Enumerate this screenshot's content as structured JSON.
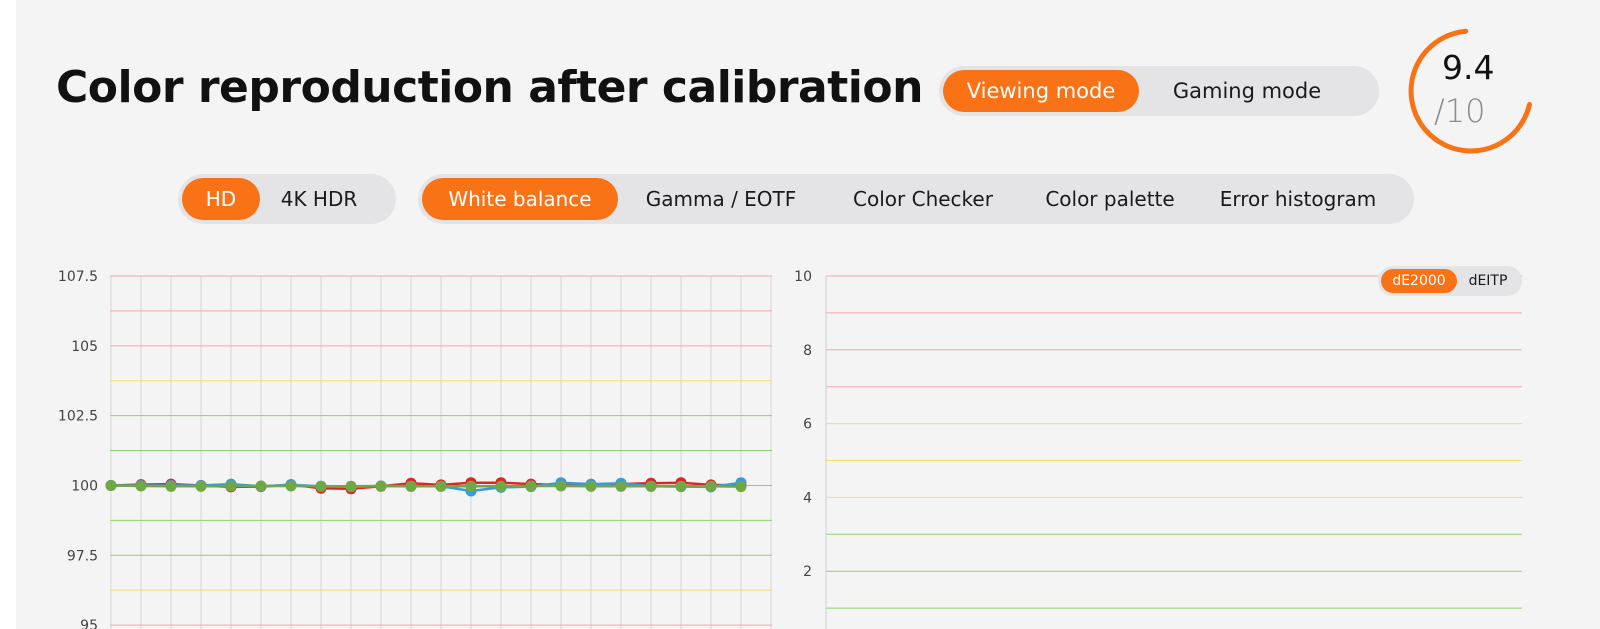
{
  "title": "Color reproduction after calibration",
  "mode_tabs": [
    {
      "label": "Viewing mode",
      "active": true
    },
    {
      "label": "Gaming mode",
      "active": false
    }
  ],
  "score": {
    "value": "9.4",
    "max": "/10",
    "fraction": 0.94,
    "accent": "#f97316"
  },
  "resolution_tabs": [
    {
      "label": "HD",
      "active": true
    },
    {
      "label": "4K HDR",
      "active": false
    }
  ],
  "view_tabs": [
    {
      "label": "White balance",
      "active": true
    },
    {
      "label": "Gamma / EOTF",
      "active": false
    },
    {
      "label": "Color Checker",
      "active": false
    },
    {
      "label": "Color palette",
      "active": false
    },
    {
      "label": "Error histogram",
      "active": false
    }
  ],
  "metric_tabs": [
    {
      "label": "dE2000",
      "active": true
    },
    {
      "label": "dEITP",
      "active": false
    }
  ],
  "colors": {
    "accent": "#f97316",
    "panel_bg": "#f4f4f4",
    "tab_bg": "#e4e4e6"
  },
  "chart_data": [
    {
      "type": "line",
      "title": "",
      "xlabel": "",
      "ylabel": "",
      "ylim": [
        93.75,
        107.5
      ],
      "yticks": [
        95,
        97.5,
        100,
        102.5,
        105,
        107.5
      ],
      "ytick_labels": [
        "95",
        "97.5",
        "100",
        "102.5",
        "105",
        "107.5"
      ],
      "grid": true,
      "x": [
        1,
        2,
        3,
        4,
        5,
        6,
        7,
        8,
        9,
        10,
        11,
        12,
        13,
        14,
        15,
        16,
        17,
        18,
        19,
        20,
        21,
        22
      ],
      "series": [
        {
          "color": "#dc2626",
          "values": [
            100.0,
            100.03,
            100.05,
            100.0,
            99.95,
            99.96,
            100.03,
            99.9,
            99.88,
            99.97,
            100.08,
            100.02,
            100.1,
            100.1,
            100.05,
            100.02,
            100.02,
            100.05,
            100.08,
            100.1,
            100.02,
            100.0
          ]
        },
        {
          "color": "#3b9bd9",
          "values": [
            100.0,
            100.0,
            100.0,
            100.0,
            100.05,
            99.97,
            100.02,
            99.97,
            99.95,
            99.98,
            99.97,
            99.97,
            99.8,
            99.93,
            99.96,
            100.1,
            100.05,
            100.08,
            99.97,
            99.96,
            99.95,
            100.1
          ]
        },
        {
          "color": "#70a844",
          "values": [
            100.0,
            99.98,
            99.97,
            99.97,
            99.98,
            99.98,
            99.98,
            99.97,
            99.97,
            99.98,
            99.97,
            99.97,
            99.97,
            99.97,
            99.98,
            99.98,
            99.97,
            99.97,
            99.97,
            99.97,
            99.97,
            99.96
          ]
        }
      ]
    },
    {
      "type": "line",
      "title": "",
      "xlabel": "",
      "ylabel": "",
      "ylim": [
        0,
        10
      ],
      "yticks": [
        2,
        4,
        6,
        8,
        10
      ],
      "ytick_labels": [
        "2",
        "4",
        "6",
        "8",
        "10"
      ],
      "grid": true,
      "series": []
    }
  ]
}
